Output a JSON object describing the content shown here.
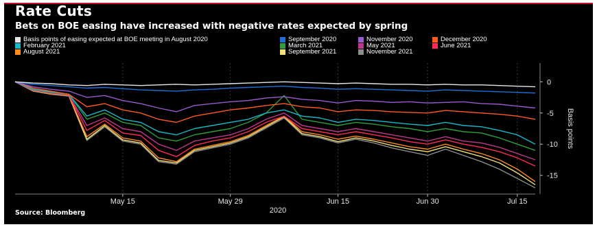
{
  "header": {
    "title": "Rate Cuts",
    "subtitle": "Bets on BOE easing have increased with negative rates expected by spring"
  },
  "source": "Source: Bloomberg",
  "chart_data": {
    "type": "line",
    "ylabel": "Basis points",
    "xlabel": "2020",
    "x_ticks": [
      "May 15",
      "May 29",
      "Jun 15",
      "Jun 30",
      "Jul 15"
    ],
    "y_ticks": [
      0,
      -5,
      -10,
      -15
    ],
    "ylim": [
      -18,
      3
    ],
    "grid": "vertical dashed",
    "legend_position": "top",
    "x_dates": [
      "May 1",
      "May 4",
      "May 6",
      "May 8",
      "May 11",
      "May 13",
      "May 15",
      "May 18",
      "May 20",
      "May 22",
      "May 26",
      "May 28",
      "May 29",
      "Jun 2",
      "Jun 4",
      "Jun 5",
      "Jun 9",
      "Jun 11",
      "Jun 15",
      "Jun 17",
      "Jun 19",
      "Jun 23",
      "Jun 25",
      "Jun 30",
      "Jul 2",
      "Jul 6",
      "Jul 8",
      "Jul 10",
      "Jul 15",
      "Jul 17"
    ],
    "series": [
      {
        "name": "Basis points of easing expected at BOE meeting in August 2020",
        "color": "#e8e8e8",
        "values": [
          0,
          -0.2,
          -0.3,
          -0.5,
          -0.6,
          -0.4,
          -0.5,
          -0.6,
          -0.5,
          -0.4,
          -0.5,
          -0.4,
          -0.3,
          -0.2,
          -0.1,
          0,
          -0.1,
          -0.2,
          -0.3,
          -0.2,
          -0.3,
          -0.4,
          -0.4,
          -0.5,
          -0.4,
          -0.5,
          -0.5,
          -0.6,
          -0.7,
          -0.8
        ]
      },
      {
        "name": "September 2020",
        "color": "#1e6fd9",
        "values": [
          0,
          -0.4,
          -0.6,
          -0.8,
          -1.0,
          -0.9,
          -1.1,
          -1.3,
          -1.4,
          -1.5,
          -1.3,
          -1.2,
          -1.0,
          -0.9,
          -0.8,
          -0.7,
          -0.9,
          -1.0,
          -1.2,
          -1.1,
          -1.2,
          -1.3,
          -1.4,
          -1.5,
          -1.3,
          -1.4,
          -1.5,
          -1.6,
          -1.7,
          -1.8
        ]
      },
      {
        "name": "November 2020",
        "color": "#9b59d0",
        "values": [
          0,
          -0.8,
          -1.2,
          -1.5,
          -2.5,
          -2.2,
          -3.0,
          -3.5,
          -4.2,
          -4.8,
          -3.8,
          -3.5,
          -3.2,
          -3.0,
          -2.6,
          -2.4,
          -2.8,
          -3.0,
          -3.4,
          -3.0,
          -3.1,
          -3.3,
          -3.2,
          -3.4,
          -3.3,
          -3.2,
          -3.5,
          -3.6,
          -3.9,
          -4.2
        ]
      },
      {
        "name": "December 2020",
        "color": "#ff5a1f",
        "values": [
          0,
          -1.0,
          -1.5,
          -2.0,
          -4.0,
          -3.5,
          -4.5,
          -5.0,
          -6.0,
          -6.5,
          -5.5,
          -5.0,
          -4.5,
          -4.2,
          -3.8,
          -3.5,
          -4.0,
          -4.2,
          -4.8,
          -4.5,
          -4.6,
          -4.8,
          -4.9,
          -5.0,
          -4.6,
          -4.8,
          -5.0,
          -5.2,
          -5.5,
          -6.0
        ]
      },
      {
        "name": "February 2021",
        "color": "#17b8c8",
        "values": [
          0,
          -1.2,
          -1.6,
          -2.0,
          -5.5,
          -4.5,
          -6.0,
          -6.5,
          -8.0,
          -8.5,
          -7.5,
          -7.0,
          -6.5,
          -6.0,
          -5.0,
          -4.5,
          -5.5,
          -5.8,
          -6.5,
          -6.0,
          -6.2,
          -6.5,
          -6.8,
          -7.0,
          -6.5,
          -7.0,
          -7.2,
          -7.8,
          -8.5,
          -10.0
        ]
      },
      {
        "name": "March 2021",
        "color": "#2e9e3e",
        "values": [
          0,
          -1.2,
          -1.7,
          -2.0,
          -6.0,
          -5.0,
          -6.5,
          -7.0,
          -9.0,
          -9.5,
          -8.5,
          -8.0,
          -7.5,
          -6.5,
          -5.0,
          -2.2,
          -6.0,
          -6.5,
          -7.0,
          -6.5,
          -6.8,
          -7.2,
          -7.5,
          -8.0,
          -7.5,
          -8.0,
          -8.2,
          -9.0,
          -10.0,
          -11.0
        ]
      },
      {
        "name": "May 2021",
        "color": "#c0368f",
        "values": [
          0,
          -1.3,
          -1.8,
          -2.1,
          -7.0,
          -5.8,
          -7.5,
          -8.0,
          -10.0,
          -11.0,
          -9.5,
          -9.0,
          -8.5,
          -7.5,
          -6.0,
          -5.0,
          -7.0,
          -7.5,
          -8.0,
          -7.5,
          -8.0,
          -8.5,
          -9.0,
          -9.5,
          -8.8,
          -9.5,
          -9.8,
          -10.5,
          -11.5,
          -12.5
        ]
      },
      {
        "name": "June 2021",
        "color": "#ff2a55",
        "values": [
          0,
          -1.3,
          -1.8,
          -2.1,
          -7.8,
          -6.2,
          -8.2,
          -8.6,
          -11.0,
          -12.0,
          -10.2,
          -9.5,
          -9.0,
          -8.0,
          -6.5,
          -5.5,
          -7.5,
          -8.0,
          -8.5,
          -8.0,
          -8.5,
          -9.0,
          -9.6,
          -10.0,
          -9.3,
          -10.0,
          -10.5,
          -11.2,
          -12.2,
          -13.5
        ]
      },
      {
        "name": "August 2021",
        "color": "#ff8a1e",
        "values": [
          0,
          -1.4,
          -1.9,
          -2.2,
          -8.8,
          -6.8,
          -9.0,
          -9.5,
          -12.2,
          -12.8,
          -10.8,
          -10.2,
          -9.6,
          -8.6,
          -7.0,
          -5.5,
          -8.0,
          -8.5,
          -9.2,
          -8.7,
          -9.2,
          -9.8,
          -10.4,
          -10.8,
          -10.0,
          -10.8,
          -11.5,
          -12.5,
          -14.0,
          -16.0
        ]
      },
      {
        "name": "September 2021",
        "color": "#f2e27a",
        "values": [
          0,
          -1.4,
          -1.9,
          -2.2,
          -9.2,
          -7.0,
          -9.3,
          -9.8,
          -12.6,
          -13.0,
          -11.0,
          -10.4,
          -9.8,
          -8.8,
          -7.2,
          -5.6,
          -8.3,
          -8.8,
          -9.6,
          -9.0,
          -9.5,
          -10.2,
          -10.8,
          -11.2,
          -10.4,
          -11.2,
          -12.0,
          -13.0,
          -14.6,
          -16.5
        ]
      },
      {
        "name": "November 2021",
        "color": "#8c8c8c",
        "values": [
          0,
          -1.5,
          -2.0,
          -2.3,
          -9.4,
          -7.2,
          -9.5,
          -10.0,
          -12.8,
          -13.2,
          -11.2,
          -10.6,
          -10.0,
          -9.0,
          -7.4,
          -5.8,
          -8.5,
          -9.0,
          -9.8,
          -9.2,
          -9.8,
          -10.6,
          -11.2,
          -11.8,
          -10.8,
          -11.8,
          -12.8,
          -14.0,
          -15.5,
          -17.0
        ]
      }
    ]
  }
}
